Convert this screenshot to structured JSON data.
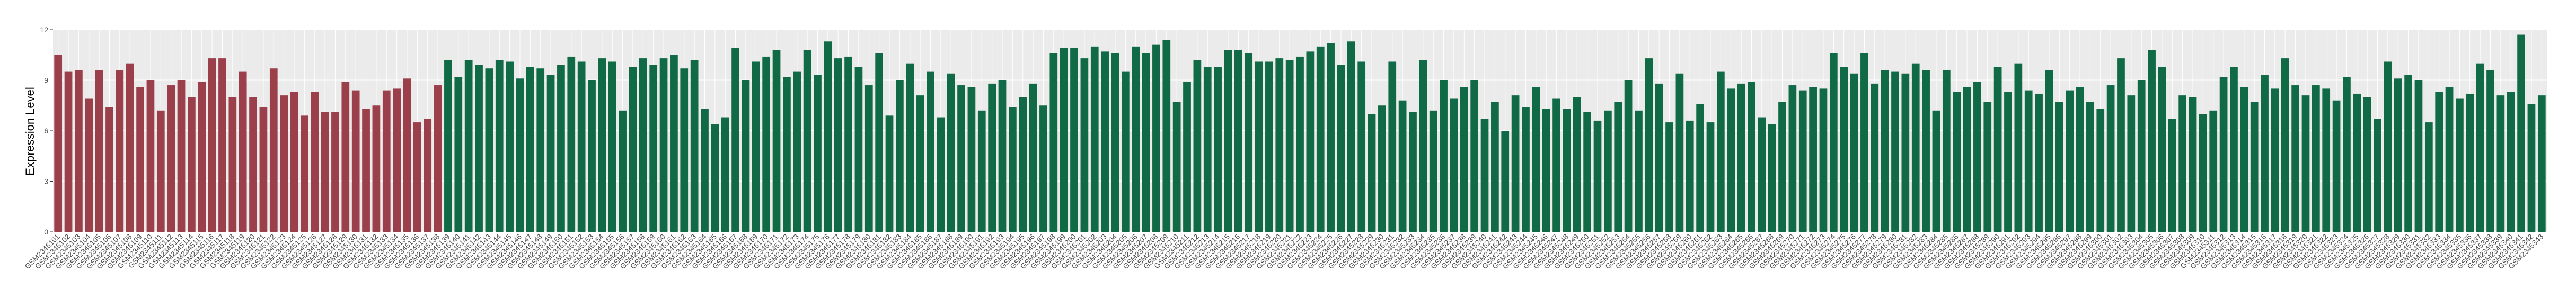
{
  "chart_data": {
    "type": "bar",
    "y_label": "Expression Level",
    "ylim": [
      0,
      12
    ],
    "yticks": [
      0,
      3,
      6,
      9,
      12
    ],
    "grid": true,
    "categories": [
      "GSM2345101",
      "GSM2345102",
      "GSM2345103",
      "GSM2345104",
      "GSM2345105",
      "GSM2345106",
      "GSM2345107",
      "GSM2345108",
      "GSM2345109",
      "GSM2345110",
      "GSM2345111",
      "GSM2345112",
      "GSM2345113",
      "GSM2345114",
      "GSM2345115",
      "GSM2345116",
      "GSM2345117",
      "GSM2345118",
      "GSM2345119",
      "GSM2345120",
      "GSM2345121",
      "GSM2345122",
      "GSM2345123",
      "GSM2345124",
      "GSM2345125",
      "GSM2345126",
      "GSM2345127",
      "GSM2345128",
      "GSM2345129",
      "GSM2345130",
      "GSM2345131",
      "GSM2345132",
      "GSM2345133",
      "GSM2345134",
      "GSM2345135",
      "GSM2345136",
      "GSM2345137",
      "GSM2345138",
      "GSM2345139",
      "GSM2345140",
      "GSM2345141",
      "GSM2345142",
      "GSM2345143",
      "GSM2345144",
      "GSM2345145",
      "GSM2345146",
      "GSM2345147",
      "GSM2345148",
      "GSM2345149",
      "GSM2345150",
      "GSM2345151",
      "GSM2345152",
      "GSM2345153",
      "GSM2345154",
      "GSM2345155",
      "GSM2345156",
      "GSM2345157",
      "GSM2345158",
      "GSM2345159",
      "GSM2345160",
      "GSM2345161",
      "GSM2345162",
      "GSM2345163",
      "GSM2345164",
      "GSM2345165",
      "GSM2345166",
      "GSM2345167",
      "GSM2345168",
      "GSM2345169",
      "GSM2345170",
      "GSM2345171",
      "GSM2345172",
      "GSM2345173",
      "GSM2345174",
      "GSM2345175",
      "GSM2345176",
      "GSM2345177",
      "GSM2345178",
      "GSM2345179",
      "GSM2345180",
      "GSM2345181",
      "GSM2345182",
      "GSM2345183",
      "GSM2345184",
      "GSM2345185",
      "GSM2345186",
      "GSM2345187",
      "GSM2345188",
      "GSM2345189",
      "GSM2345190",
      "GSM2345191",
      "GSM2345192",
      "GSM2345193",
      "GSM2345194",
      "GSM2345195",
      "GSM2345196",
      "GSM2345197",
      "GSM2345198",
      "GSM2345199",
      "GSM2345200",
      "GSM2345201",
      "GSM2345202",
      "GSM2345203",
      "GSM2345204",
      "GSM2345205",
      "GSM2345206",
      "GSM2345207",
      "GSM2345208",
      "GSM2345209",
      "GSM2345210",
      "GSM2345211",
      "GSM2345212",
      "GSM2345213",
      "GSM2345214",
      "GSM2345215",
      "GSM2345216",
      "GSM2345217",
      "GSM2345218",
      "GSM2345219",
      "GSM2345220",
      "GSM2345221",
      "GSM2345222",
      "GSM2345223",
      "GSM2345224",
      "GSM2345225",
      "GSM2345226",
      "GSM2345227",
      "GSM2345228",
      "GSM2345229",
      "GSM2345230",
      "GSM2345231",
      "GSM2345232",
      "GSM2345233",
      "GSM2345234",
      "GSM2345235",
      "GSM2345236",
      "GSM2345237",
      "GSM2345238",
      "GSM2345239",
      "GSM2345240",
      "GSM2345241",
      "GSM2345242",
      "GSM2345243",
      "GSM2345244",
      "GSM2345245",
      "GSM2345246",
      "GSM2345247",
      "GSM2345248",
      "GSM2345249",
      "GSM2345250",
      "GSM2345251",
      "GSM2345252",
      "GSM2345253",
      "GSM2345254",
      "GSM2345255",
      "GSM2345256",
      "GSM2345257",
      "GSM2345258",
      "GSM2345259",
      "GSM2345260",
      "GSM2345261",
      "GSM2345262",
      "GSM2345263",
      "GSM2345264",
      "GSM2345265",
      "GSM2345266",
      "GSM2345267",
      "GSM2345268",
      "GSM2345269",
      "GSM2345270",
      "GSM2345271",
      "GSM2345272",
      "GSM2345273",
      "GSM2345274",
      "GSM2345275",
      "GSM2345276",
      "GSM2345277",
      "GSM2345278",
      "GSM2345279",
      "GSM2345280",
      "GSM2345281",
      "GSM2345282",
      "GSM2345283",
      "GSM2345284",
      "GSM2345285",
      "GSM2345286",
      "GSM2345287",
      "GSM2345288",
      "GSM2345289",
      "GSM2345290",
      "GSM2345291",
      "GSM2345292",
      "GSM2345293",
      "GSM2345294",
      "GSM2345295",
      "GSM2345296",
      "GSM2345297",
      "GSM2345298",
      "GSM2345299",
      "GSM2345300",
      "GSM2345301",
      "GSM2345302",
      "GSM2345303",
      "GSM2345304",
      "GSM2345305",
      "GSM2345306",
      "GSM2345307",
      "GSM2345308",
      "GSM2345309",
      "GSM2345310",
      "GSM2345311",
      "GSM2345312",
      "GSM2345313",
      "GSM2345314",
      "GSM2345315",
      "GSM2345316",
      "GSM2345317",
      "GSM2345318",
      "GSM2345319",
      "GSM2345320",
      "GSM2345321",
      "GSM2345322",
      "GSM2345323",
      "GSM2345324",
      "GSM2345325",
      "GSM2345326",
      "GSM2345327",
      "GSM2345328",
      "GSM2345329",
      "GSM2345330",
      "GSM2345331",
      "GSM2345332",
      "GSM2345333",
      "GSM2345334",
      "GSM2345335",
      "GSM2345336",
      "GSM2345337",
      "GSM2345338",
      "GSM2345339",
      "GSM2345340",
      "GSM2345341",
      "GSM2345342",
      "GSM2345343"
    ],
    "values": [
      10.5,
      9.5,
      9.6,
      7.9,
      9.6,
      7.4,
      9.6,
      10,
      8.6,
      9,
      7.2,
      8.7,
      9,
      8,
      8.9,
      10.3,
      10.3,
      8,
      9.5,
      8,
      7.4,
      9.7,
      8.1,
      8.3,
      6.9,
      8.3,
      7.1,
      7.1,
      8.9,
      8.4,
      7.3,
      7.5,
      8.4,
      8.5,
      9.1,
      6.5,
      6.7,
      8.7,
      10.2,
      9.2,
      10.2,
      9.9,
      9.7,
      10.2,
      10.1,
      9.1,
      9.8,
      9.7,
      9.3,
      9.9,
      10.4,
      10.1,
      9,
      10.3,
      10.1,
      7.2,
      9.8,
      10.3,
      9.9,
      10.3,
      10.5,
      9.7,
      10.2,
      7.3,
      6.4,
      6.8,
      10.9,
      9,
      10.1,
      10.4,
      10.8,
      9.2,
      9.5,
      10.8,
      9.3,
      11.3,
      10.3,
      10.4,
      9.8,
      8.7,
      10.6,
      6.9,
      9,
      10,
      8.1,
      9.5,
      6.8,
      9.4,
      8.7,
      8.6,
      7.2,
      8.8,
      9,
      7.4,
      8,
      8.8,
      7.5,
      10.6,
      10.9,
      10.9,
      10.3,
      11,
      10.7,
      10.6,
      9.5,
      11,
      10.6,
      11.1,
      11.4,
      7.7,
      8.9,
      10.2,
      9.8,
      9.8,
      10.8,
      10.8,
      10.6,
      10.1,
      10.1,
      10.3,
      10.2,
      10.4,
      10.7,
      11,
      11.2,
      9.9,
      11.3,
      10.1,
      7,
      7.5,
      10.1,
      7.8,
      7.1,
      10.2,
      7.2,
      9,
      7.9,
      8.6,
      9,
      6.7,
      7.7,
      6,
      8.1,
      7.4,
      8.6,
      7.3,
      7.9,
      7.3,
      8,
      7.1,
      6.6,
      7.2,
      7.7,
      9,
      7.2,
      10.3,
      8.8,
      6.5,
      9.4,
      6.6,
      7.6,
      6.5,
      9.5,
      8.5,
      8.8,
      8.9,
      6.8,
      6.4,
      7.7,
      8.7,
      8.4,
      8.6,
      8.5,
      10.6,
      9.8,
      9.4,
      10.6,
      8.8,
      9.6,
      9.5,
      9.4,
      10,
      9.6,
      7.2,
      9.6,
      8.3,
      8.6,
      8.9,
      7.7,
      9.8,
      8.3,
      10,
      8.4,
      8.2,
      9.6,
      7.7,
      8.4,
      8.6,
      7.7,
      7.3,
      8.7,
      10.3,
      8.1,
      9,
      10.8,
      9.8,
      6.7,
      8.1,
      8,
      7,
      7.2,
      9.2,
      9.8,
      8.6,
      7.7,
      9.3,
      8.5,
      10.3,
      8.7,
      8.1,
      8.7,
      8.5,
      7.8,
      9.2,
      8.2,
      8,
      6.7,
      10.1,
      9.1,
      9.3,
      9,
      6.5,
      8.3,
      8.6,
      7.9,
      8.2,
      10,
      9.6,
      8.1,
      8.3,
      11.7,
      7.6,
      8.1
    ],
    "colors": [
      "#9b3f4b",
      "#9b3f4b",
      "#9b3f4b",
      "#9b3f4b",
      "#9b3f4b",
      "#9b3f4b",
      "#9b3f4b",
      "#9b3f4b",
      "#9b3f4b",
      "#9b3f4b",
      "#9b3f4b",
      "#9b3f4b",
      "#9b3f4b",
      "#9b3f4b",
      "#9b3f4b",
      "#9b3f4b",
      "#9b3f4b",
      "#9b3f4b",
      "#9b3f4b",
      "#9b3f4b",
      "#9b3f4b",
      "#9b3f4b",
      "#9b3f4b",
      "#9b3f4b",
      "#9b3f4b",
      "#9b3f4b",
      "#9b3f4b",
      "#9b3f4b",
      "#9b3f4b",
      "#9b3f4b",
      "#9b3f4b",
      "#9b3f4b",
      "#9b3f4b",
      "#9b3f4b",
      "#9b3f4b",
      "#9b3f4b",
      "#9b3f4b",
      "#9b3f4b",
      "#0f6a45",
      "#0f6a45",
      "#0f6a45",
      "#0f6a45",
      "#0f6a45",
      "#0f6a45",
      "#0f6a45",
      "#0f6a45",
      "#0f6a45",
      "#0f6a45",
      "#0f6a45",
      "#0f6a45",
      "#0f6a45",
      "#0f6a45",
      "#0f6a45",
      "#0f6a45",
      "#0f6a45",
      "#0f6a45",
      "#0f6a45",
      "#0f6a45",
      "#0f6a45",
      "#0f6a45",
      "#0f6a45",
      "#0f6a45",
      "#0f6a45",
      "#0f6a45",
      "#0f6a45",
      "#0f6a45",
      "#0f6a45",
      "#0f6a45",
      "#0f6a45",
      "#0f6a45",
      "#0f6a45",
      "#0f6a45",
      "#0f6a45",
      "#0f6a45",
      "#0f6a45",
      "#0f6a45",
      "#0f6a45",
      "#0f6a45",
      "#0f6a45",
      "#0f6a45",
      "#0f6a45",
      "#0f6a45",
      "#0f6a45",
      "#0f6a45",
      "#0f6a45",
      "#0f6a45",
      "#0f6a45",
      "#0f6a45",
      "#0f6a45",
      "#0f6a45",
      "#0f6a45",
      "#0f6a45",
      "#0f6a45",
      "#0f6a45",
      "#0f6a45",
      "#0f6a45",
      "#0f6a45",
      "#0f6a45",
      "#0f6a45",
      "#0f6a45",
      "#0f6a45",
      "#0f6a45",
      "#0f6a45",
      "#0f6a45",
      "#0f6a45",
      "#0f6a45",
      "#0f6a45",
      "#0f6a45",
      "#0f6a45",
      "#0f6a45",
      "#0f6a45",
      "#0f6a45",
      "#0f6a45",
      "#0f6a45",
      "#0f6a45",
      "#0f6a45",
      "#0f6a45",
      "#0f6a45",
      "#0f6a45",
      "#0f6a45",
      "#0f6a45",
      "#0f6a45",
      "#0f6a45",
      "#0f6a45",
      "#0f6a45",
      "#0f6a45",
      "#0f6a45",
      "#0f6a45",
      "#0f6a45",
      "#0f6a45",
      "#0f6a45",
      "#0f6a45",
      "#0f6a45",
      "#0f6a45",
      "#0f6a45",
      "#0f6a45",
      "#0f6a45",
      "#0f6a45",
      "#0f6a45",
      "#0f6a45",
      "#0f6a45",
      "#0f6a45",
      "#0f6a45",
      "#0f6a45",
      "#0f6a45",
      "#0f6a45",
      "#0f6a45",
      "#0f6a45",
      "#0f6a45",
      "#0f6a45",
      "#0f6a45",
      "#0f6a45",
      "#0f6a45",
      "#0f6a45",
      "#0f6a45",
      "#0f6a45",
      "#0f6a45",
      "#0f6a45",
      "#0f6a45",
      "#0f6a45",
      "#0f6a45",
      "#0f6a45",
      "#0f6a45",
      "#0f6a45",
      "#0f6a45",
      "#0f6a45",
      "#0f6a45",
      "#0f6a45",
      "#0f6a45",
      "#0f6a45",
      "#0f6a45",
      "#0f6a45",
      "#0f6a45",
      "#0f6a45",
      "#0f6a45",
      "#0f6a45",
      "#0f6a45",
      "#0f6a45",
      "#0f6a45",
      "#0f6a45",
      "#0f6a45",
      "#0f6a45",
      "#0f6a45",
      "#0f6a45",
      "#0f6a45",
      "#0f6a45",
      "#0f6a45",
      "#0f6a45",
      "#0f6a45",
      "#0f6a45",
      "#0f6a45",
      "#0f6a45",
      "#0f6a45",
      "#0f6a45",
      "#0f6a45",
      "#0f6a45",
      "#0f6a45",
      "#0f6a45",
      "#0f6a45",
      "#0f6a45",
      "#0f6a45",
      "#0f6a45",
      "#0f6a45",
      "#0f6a45",
      "#0f6a45",
      "#0f6a45",
      "#0f6a45",
      "#0f6a45",
      "#0f6a45",
      "#0f6a45",
      "#0f6a45",
      "#0f6a45",
      "#0f6a45",
      "#0f6a45",
      "#0f6a45",
      "#0f6a45",
      "#0f6a45",
      "#0f6a45",
      "#0f6a45",
      "#0f6a45",
      "#0f6a45",
      "#0f6a45",
      "#0f6a45",
      "#0f6a45",
      "#0f6a45",
      "#0f6a45",
      "#0f6a45",
      "#0f6a45",
      "#0f6a45",
      "#0f6a45",
      "#0f6a45",
      "#0f6a45",
      "#0f6a45",
      "#0f6a45",
      "#0f6a45",
      "#0f6a45",
      "#0f6a45",
      "#0f6a45",
      "#0f6a45",
      "#0f6a45",
      "#0f6a45",
      "#0f6a45",
      "#0f6a45",
      "#0f6a45",
      "#0f6a45",
      "#0f6a45",
      "#0f6a45",
      "#0f6a45",
      "#0f6a45",
      "#0f6a45",
      "#0f6a45",
      "#0f6a45",
      "#0f6a45",
      "#0f6a45"
    ]
  }
}
